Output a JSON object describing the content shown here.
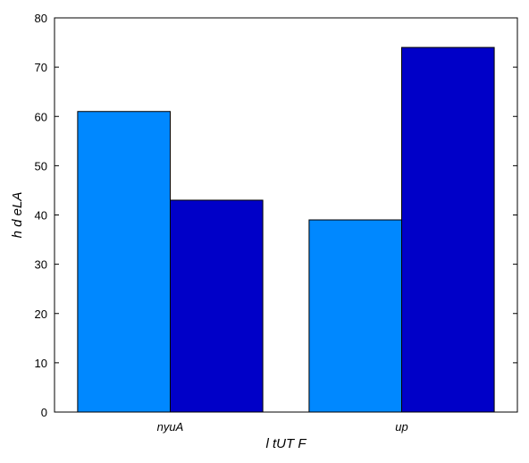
{
  "chart_data": {
    "type": "bar",
    "categories": [
      "nyuA",
      "up"
    ],
    "series": [
      {
        "values": [
          61,
          39
        ],
        "color": "#0088ff"
      },
      {
        "values": [
          43,
          74
        ],
        "color": "#0000c8"
      }
    ],
    "xlabel": "l tUT F",
    "ylabel": "h d eLA",
    "ylim": [
      0,
      80
    ],
    "yticks": [
      0,
      10,
      20,
      30,
      40,
      50,
      60,
      70,
      80
    ],
    "grid": false,
    "legend": "none"
  }
}
